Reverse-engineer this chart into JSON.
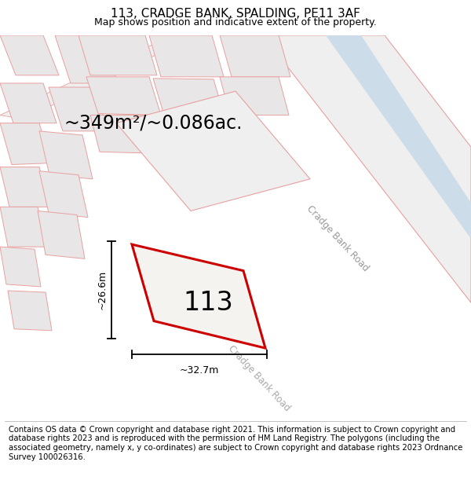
{
  "title": "113, CRADGE BANK, SPALDING, PE11 3AF",
  "subtitle": "Map shows position and indicative extent of the property.",
  "area_text": "~349m²/~0.086ac.",
  "plot_number": "113",
  "dim_width": "~32.7m",
  "dim_height": "~26.6m",
  "road_label": "Cradge Bank Road",
  "footer": "Contains OS data © Crown copyright and database right 2021. This information is subject to Crown copyright and database rights 2023 and is reproduced with the permission of HM Land Registry. The polygons (including the associated geometry, namely x, y co-ordinates) are subject to Crown copyright and database rights 2023 Ordnance Survey 100026316.",
  "map_bg": "#f7f6f6",
  "building_fill": "#e8e6e6",
  "building_edge": "#e8a0a0",
  "plot_edge": "#cc0000",
  "road_stripe": "#ccdce8",
  "road_edge": "#e8a0a0",
  "title_fontsize": 11,
  "subtitle_fontsize": 9,
  "area_fontsize": 17,
  "dim_fontsize": 9,
  "plot_label_fontsize": 24,
  "road_label_fontsize": 8.5,
  "footer_fontsize": 7.2
}
